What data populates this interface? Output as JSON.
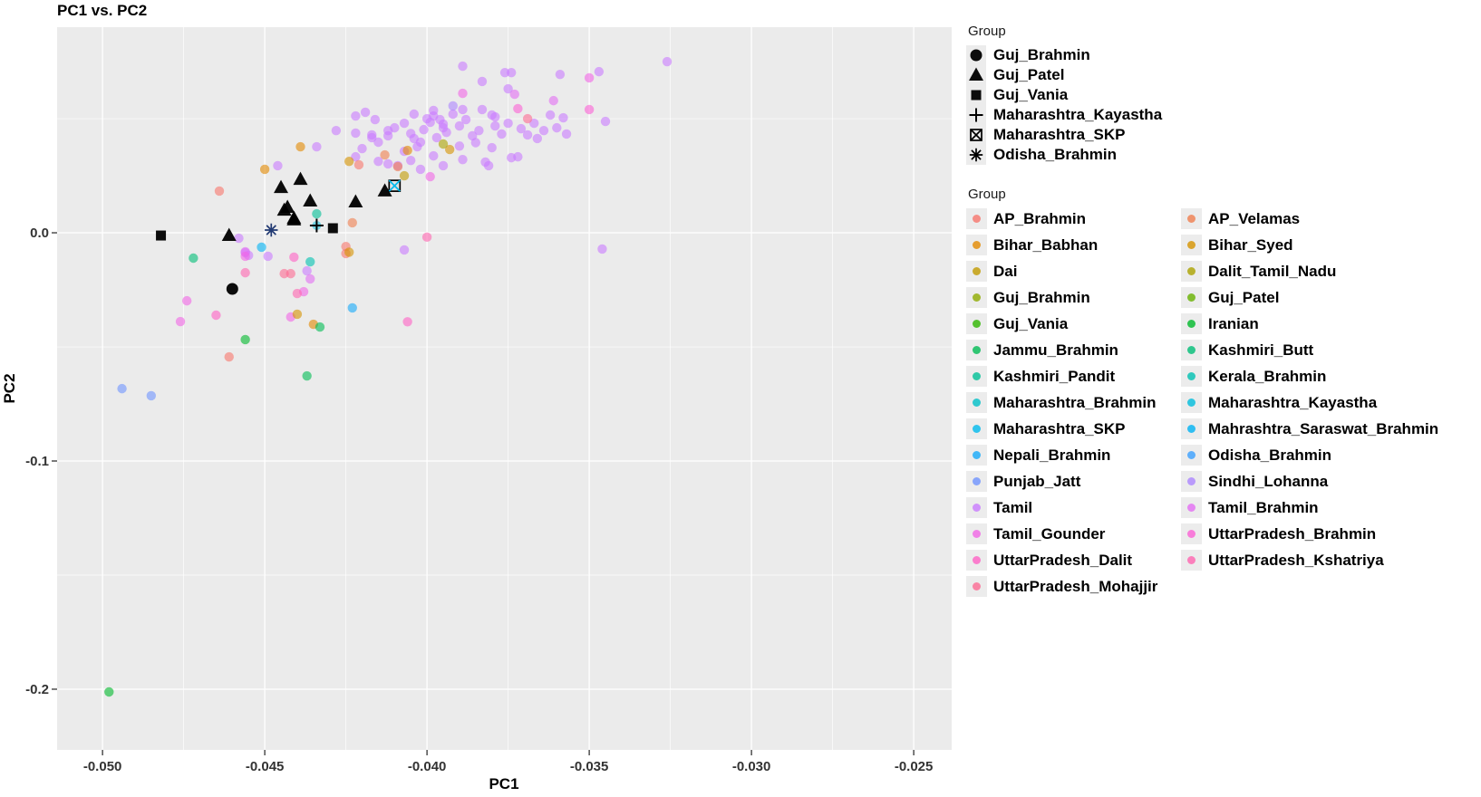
{
  "title": "PC1 vs. PC2",
  "chart_data": {
    "type": "scatter",
    "x_axis": {
      "title": "PC1",
      "domain": [
        -0.0514,
        -0.02383
      ],
      "ticks": [
        {
          "v": -0.05,
          "label": "-0.050"
        },
        {
          "v": -0.045,
          "label": "-0.045"
        },
        {
          "v": -0.04,
          "label": "-0.040"
        },
        {
          "v": -0.035,
          "label": "-0.035"
        },
        {
          "v": -0.03,
          "label": "-0.030"
        },
        {
          "v": -0.025,
          "label": "-0.025"
        }
      ],
      "minor": [
        -0.0475,
        -0.0425,
        -0.0375,
        -0.0325,
        -0.0275
      ]
    },
    "y_axis": {
      "title": "PC2",
      "domain": [
        0.0901,
        -0.2266
      ],
      "ticks": [
        {
          "v": 0.0,
          "label": "0.0"
        },
        {
          "v": -0.1,
          "label": "-0.1"
        },
        {
          "v": -0.2,
          "label": "-0.2"
        }
      ],
      "minor": [
        0.05,
        -0.05,
        -0.15
      ]
    },
    "style": {
      "panel_bg": "#EBEBEB",
      "grid": "#FFFFFF",
      "tick_text": "#333333",
      "point_opacity": 0.6,
      "skp_x_color": "#00BAEE",
      "kayastha_halo": "#00BDDC",
      "asterisk_color": "#223a73"
    },
    "shape_legend": {
      "title": "Group",
      "entries": [
        {
          "label": "Guj_Brahmin",
          "shape": "circle"
        },
        {
          "label": "Guj_Patel",
          "shape": "triangle"
        },
        {
          "label": "Guj_Vania",
          "shape": "square"
        },
        {
          "label": "Maharashtra_Kayastha",
          "shape": "plus"
        },
        {
          "label": "Maharashtra_SKP",
          "shape": "boxx"
        },
        {
          "label": "Odisha_Brahmin",
          "shape": "asterisk"
        }
      ]
    },
    "color_legend": {
      "title": "Group",
      "entries": [
        {
          "label": "AP_Brahmin",
          "color": "#F8766D"
        },
        {
          "label": "AP_Velamas",
          "color": "#F07E4F"
        },
        {
          "label": "Bihar_Babhan",
          "color": "#E38900"
        },
        {
          "label": "Bihar_Syed",
          "color": "#D69300"
        },
        {
          "label": "Dai",
          "color": "#C29B00"
        },
        {
          "label": "Dalit_Tamil_Nadu",
          "color": "#ABA300"
        },
        {
          "label": "Guj_Brahmin",
          "color": "#8FAB00"
        },
        {
          "label": "Guj_Patel",
          "color": "#68B200"
        },
        {
          "label": "Guj_Vania",
          "color": "#2FB600"
        },
        {
          "label": "Iranian",
          "color": "#00B92B"
        },
        {
          "label": "Jammu_Brahmin",
          "color": "#00BC54"
        },
        {
          "label": "Kashmiri_Butt",
          "color": "#00BE77"
        },
        {
          "label": "Kashmiri_Pandit",
          "color": "#00C096"
        },
        {
          "label": "Kerala_Brahmin",
          "color": "#00C1B1"
        },
        {
          "label": "Maharashtra_Brahmin",
          "color": "#00C0C8"
        },
        {
          "label": "Maharashtra_Kayastha",
          "color": "#00BDDC"
        },
        {
          "label": "Maharashtra_SKP",
          "color": "#00BAEE"
        },
        {
          "label": "Mahrashtra_Saraswat_Brahmin",
          "color": "#00B3F4"
        },
        {
          "label": "Nepali_Brahmin",
          "color": "#16AAFA"
        },
        {
          "label": "Odisha_Brahmin",
          "color": "#3BA0FF"
        },
        {
          "label": "Punjab_Jatt",
          "color": "#6F94FF"
        },
        {
          "label": "Sindhi_Lohanna",
          "color": "#AD86FF"
        },
        {
          "label": "Tamil",
          "color": "#C97BFF"
        },
        {
          "label": "Tamil_Brahmin",
          "color": "#E36EF4"
        },
        {
          "label": "Tamil_Gounder",
          "color": "#F166E6"
        },
        {
          "label": "UttarPradesh_Brahmin",
          "color": "#FB61D6"
        },
        {
          "label": "UttarPradesh_Dalit",
          "color": "#FF61C5"
        },
        {
          "label": "UttarPradesh_Kshatriya",
          "color": "#FF65B0"
        },
        {
          "label": "UttarPradesh_Mohajjir",
          "color": "#FD6B93"
        }
      ]
    },
    "points": [
      [
        -0.0434,
        0.0377,
        "Tamil"
      ],
      [
        -0.0428,
        0.0448,
        "Tamil"
      ],
      [
        -0.0422,
        0.0512,
        "Tamil"
      ],
      [
        -0.0422,
        0.0437,
        "Tamil"
      ],
      [
        -0.0419,
        0.0528,
        "Tamil"
      ],
      [
        -0.0416,
        0.0496,
        "Tamil"
      ],
      [
        -0.0417,
        0.0429,
        "Tamil"
      ],
      [
        -0.0417,
        0.0417,
        "Tamil"
      ],
      [
        -0.0412,
        0.0425,
        "Tamil"
      ],
      [
        -0.0415,
        0.0397,
        "Tamil"
      ],
      [
        -0.0404,
        0.052,
        "Tamil"
      ],
      [
        -0.04,
        0.05,
        "Tamil"
      ],
      [
        -0.0398,
        0.0512,
        "Tamil"
      ],
      [
        -0.0398,
        0.0536,
        "Tamil"
      ],
      [
        -0.0396,
        0.0496,
        "Tamil"
      ],
      [
        -0.0395,
        0.0476,
        "Tamil"
      ],
      [
        -0.0392,
        0.052,
        "Tamil"
      ],
      [
        -0.0389,
        0.054,
        "Tamil"
      ],
      [
        -0.0383,
        0.054,
        "Tamil"
      ],
      [
        -0.038,
        0.0516,
        "Tamil"
      ],
      [
        -0.0376,
        0.0702,
        "Tamil"
      ],
      [
        -0.0374,
        0.0702,
        "Tamil"
      ],
      [
        -0.0375,
        0.0631,
        "Tamil"
      ],
      [
        -0.0362,
        0.0516,
        "Tamil"
      ],
      [
        -0.0359,
        0.0694,
        "Tamil"
      ],
      [
        -0.0358,
        0.0504,
        "Tamil"
      ],
      [
        -0.0347,
        0.0706,
        "Tamil"
      ],
      [
        -0.0345,
        0.0488,
        "Tamil"
      ],
      [
        -0.0326,
        0.075,
        "Tamil"
      ],
      [
        -0.0389,
        0.073,
        "Tamil"
      ],
      [
        -0.0383,
        0.0663,
        "Tamil"
      ],
      [
        -0.0403,
        0.0377,
        "Tamil"
      ],
      [
        -0.0405,
        0.0317,
        "Tamil"
      ],
      [
        -0.0409,
        0.0294,
        "Tamil"
      ],
      [
        -0.0412,
        0.0302,
        "Tamil"
      ],
      [
        -0.0415,
        0.0313,
        "Tamil"
      ],
      [
        -0.042,
        0.0369,
        "Tamil"
      ],
      [
        -0.0422,
        0.0333,
        "Tamil"
      ],
      [
        -0.0404,
        0.0413,
        "Tamil"
      ],
      [
        -0.0402,
        0.0278,
        "Tamil"
      ],
      [
        -0.0395,
        0.0294,
        "Tamil"
      ],
      [
        -0.0389,
        0.0321,
        "Tamil"
      ],
      [
        -0.0382,
        0.031,
        "Tamil"
      ],
      [
        -0.0381,
        0.0294,
        "Tamil"
      ],
      [
        -0.0374,
        0.0329,
        "Tamil"
      ],
      [
        -0.0372,
        0.0333,
        "Tamil"
      ],
      [
        -0.0407,
        -0.0075,
        "Tamil"
      ],
      [
        -0.0346,
        -0.0071,
        "Tamil"
      ],
      [
        -0.0458,
        -0.0024,
        "Tamil"
      ],
      [
        -0.0456,
        -0.0087,
        "Tamil"
      ],
      [
        -0.0455,
        -0.0099,
        "Tamil"
      ],
      [
        -0.0449,
        -0.0103,
        "Tamil"
      ],
      [
        -0.0437,
        -0.0167,
        "Tamil"
      ],
      [
        -0.0446,
        0.0294,
        "Tamil"
      ],
      [
        -0.041,
        0.046,
        "Tamil"
      ],
      [
        -0.0405,
        0.0435,
        "Tamil"
      ],
      [
        -0.0401,
        0.0452,
        "Tamil"
      ],
      [
        -0.0397,
        0.0417,
        "Tamil"
      ],
      [
        -0.0394,
        0.044,
        "Tamil"
      ],
      [
        -0.039,
        0.0468,
        "Tamil"
      ],
      [
        -0.0388,
        0.0496,
        "Tamil"
      ],
      [
        -0.0386,
        0.0425,
        "Tamil"
      ],
      [
        -0.0384,
        0.0448,
        "Tamil"
      ],
      [
        -0.0379,
        0.0468,
        "Tamil"
      ],
      [
        -0.0377,
        0.0433,
        "Tamil"
      ],
      [
        -0.0375,
        0.048,
        "Tamil"
      ],
      [
        -0.0371,
        0.0456,
        "Tamil"
      ],
      [
        -0.0369,
        0.0429,
        "Tamil"
      ],
      [
        -0.0367,
        0.048,
        "Tamil"
      ],
      [
        -0.0366,
        0.0413,
        "Tamil"
      ],
      [
        -0.0364,
        0.0448,
        "Tamil"
      ],
      [
        -0.036,
        0.046,
        "Tamil"
      ],
      [
        -0.0357,
        0.0433,
        "Tamil"
      ],
      [
        -0.039,
        0.038,
        "Tamil"
      ],
      [
        -0.0385,
        0.0395,
        "Tamil"
      ],
      [
        -0.038,
        0.0373,
        "Tamil"
      ],
      [
        -0.0407,
        0.048,
        "Tamil"
      ],
      [
        -0.0412,
        0.0448,
        "Tamil"
      ],
      [
        -0.0399,
        0.0484,
        "Tamil"
      ],
      [
        -0.0395,
        0.046,
        "Tamil"
      ],
      [
        -0.0402,
        0.0397,
        "Tamil"
      ],
      [
        -0.0398,
        0.0337,
        "Tamil"
      ],
      [
        -0.0407,
        0.0357,
        "Tamil"
      ],
      [
        -0.0379,
        0.0508,
        "Tamil"
      ],
      [
        -0.0361,
        0.0579,
        "Tamil_Brahmin"
      ],
      [
        -0.0373,
        0.0607,
        "Tamil_Brahmin"
      ],
      [
        -0.0436,
        -0.0202,
        "Tamil_Brahmin"
      ],
      [
        -0.0456,
        -0.0083,
        "Tamil_Brahmin"
      ],
      [
        -0.0389,
        0.0611,
        "Tamil_Gounder"
      ],
      [
        -0.035,
        0.0679,
        "Tamil_Gounder"
      ],
      [
        -0.0399,
        0.0246,
        "Tamil_Gounder"
      ],
      [
        -0.0474,
        -0.0298,
        "Tamil_Gounder"
      ],
      [
        -0.0476,
        -0.0389,
        "Tamil_Gounder"
      ],
      [
        -0.0442,
        -0.0369,
        "Tamil_Gounder"
      ],
      [
        -0.0456,
        -0.0103,
        "Tamil_Gounder"
      ],
      [
        -0.0438,
        -0.0258,
        "Tamil_Gounder"
      ],
      [
        -0.0372,
        0.0544,
        "UttarPradesh_Brahmin"
      ],
      [
        -0.035,
        0.054,
        "UttarPradesh_Brahmin"
      ],
      [
        -0.0441,
        -0.0107,
        "UttarPradesh_Dalit"
      ],
      [
        -0.0465,
        -0.0361,
        "UttarPradesh_Dalit"
      ],
      [
        -0.0406,
        -0.039,
        "UttarPradesh_Dalit"
      ],
      [
        -0.0456,
        -0.0175,
        "UttarPradesh_Kshatriya"
      ],
      [
        -0.044,
        -0.0266,
        "UttarPradesh_Kshatriya"
      ],
      [
        -0.04,
        -0.0019,
        "UttarPradesh_Kshatriya"
      ],
      [
        -0.0444,
        -0.0179,
        "UttarPradesh_Mohajjir"
      ],
      [
        -0.0442,
        -0.0179,
        "UttarPradesh_Mohajjir"
      ],
      [
        -0.0369,
        0.05,
        "UttarPradesh_Mohajjir"
      ],
      [
        -0.0464,
        0.0183,
        "AP_Brahmin"
      ],
      [
        -0.0425,
        -0.0091,
        "AP_Brahmin"
      ],
      [
        -0.0461,
        -0.0544,
        "AP_Brahmin"
      ],
      [
        -0.0421,
        0.0298,
        "AP_Brahmin"
      ],
      [
        -0.0425,
        -0.006,
        "AP_Brahmin"
      ],
      [
        -0.0423,
        0.0044,
        "AP_Velamas"
      ],
      [
        -0.0413,
        0.0341,
        "AP_Velamas"
      ],
      [
        -0.0409,
        0.029,
        "AP_Velamas"
      ],
      [
        -0.045,
        0.0278,
        "Bihar_Babhan"
      ],
      [
        -0.0439,
        0.0377,
        "Bihar_Babhan"
      ],
      [
        -0.0406,
        0.0361,
        "Bihar_Babhan"
      ],
      [
        -0.0435,
        -0.0401,
        "Bihar_Babhan"
      ],
      [
        -0.0424,
        0.0313,
        "Bihar_Syed"
      ],
      [
        -0.0393,
        0.0365,
        "Bihar_Syed"
      ],
      [
        -0.044,
        -0.0357,
        "Bihar_Syed"
      ],
      [
        -0.0424,
        -0.0085,
        "Bihar_Syed"
      ],
      [
        -0.0407,
        0.025,
        "Dai"
      ],
      [
        -0.0395,
        0.0389,
        "Dalit_Tamil_Nadu"
      ],
      [
        -0.0498,
        -0.2012,
        "Iranian"
      ],
      [
        -0.0456,
        -0.0468,
        "Iranian"
      ],
      [
        -0.0433,
        -0.0413,
        "Jammu_Brahmin"
      ],
      [
        -0.0437,
        -0.0627,
        "Jammu_Brahmin"
      ],
      [
        -0.0472,
        -0.0111,
        "Kashmiri_Butt"
      ],
      [
        -0.0434,
        0.0083,
        "Kashmiri_Pandit"
      ],
      [
        -0.0436,
        -0.0127,
        "Kerala_Brahmin"
      ],
      [
        -0.0451,
        -0.0063,
        "Mahrashtra_Saraswat_Brahmin"
      ],
      [
        -0.0423,
        -0.0329,
        "Nepali_Brahmin"
      ],
      [
        -0.0494,
        -0.0683,
        "Punjab_Jatt"
      ],
      [
        -0.0485,
        -0.0714,
        "Punjab_Jatt"
      ],
      [
        -0.0392,
        0.0556,
        "Sindhi_Lohanna"
      ]
    ],
    "shape_points": [
      [
        -0.046,
        -0.0246,
        "Guj_Brahmin",
        "circle"
      ],
      [
        -0.0445,
        0.0198,
        "Guj_Patel",
        "triangle"
      ],
      [
        -0.0439,
        0.0234,
        "Guj_Patel",
        "triangle"
      ],
      [
        -0.0436,
        0.0139,
        "Guj_Patel",
        "triangle"
      ],
      [
        -0.0443,
        0.0111,
        "Guj_Patel",
        "triangle"
      ],
      [
        -0.0444,
        0.0099,
        "Guj_Patel",
        "triangle"
      ],
      [
        -0.0441,
        0.0063,
        "Guj_Patel",
        "triangle"
      ],
      [
        -0.0422,
        0.0135,
        "Guj_Patel",
        "triangle"
      ],
      [
        -0.0413,
        0.0183,
        "Guj_Patel",
        "triangle"
      ],
      [
        -0.0461,
        -0.0012,
        "Guj_Patel",
        "triangle"
      ],
      [
        -0.0441,
        0.0056,
        "Guj_Patel",
        "triangle"
      ],
      [
        -0.0482,
        -0.0012,
        "Guj_Vania",
        "square"
      ],
      [
        -0.0429,
        0.002,
        "Guj_Vania",
        "square"
      ],
      [
        -0.0434,
        0.0032,
        "Maharashtra_Kayastha",
        "plus"
      ],
      [
        -0.041,
        0.0206,
        "Maharashtra_SKP",
        "boxx"
      ],
      [
        -0.0448,
        0.0012,
        "Odisha_Brahmin",
        "asterisk"
      ]
    ]
  }
}
